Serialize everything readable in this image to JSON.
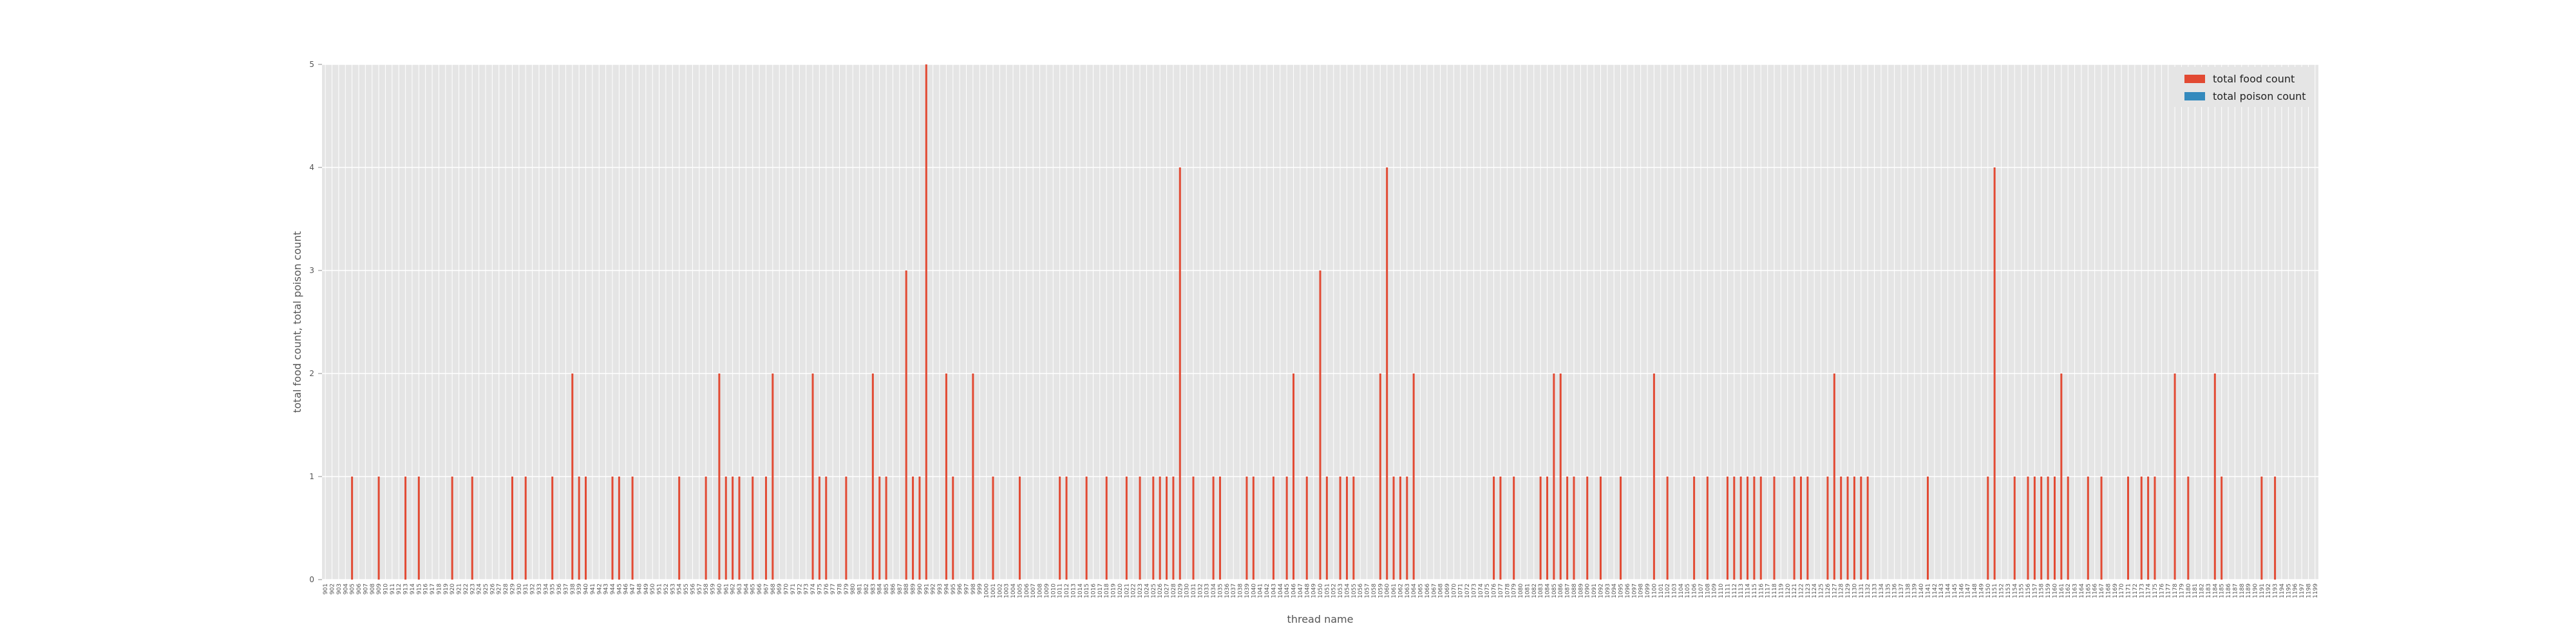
{
  "chart_data": {
    "type": "bar",
    "title": "",
    "xlabel": "thread name",
    "ylabel": "total food count, total poison count",
    "ylim": [
      0,
      5
    ],
    "yticks": [
      0,
      1,
      2,
      3,
      4,
      5
    ],
    "grid": true,
    "legend_position": "top-right",
    "x_range": [
      901,
      1199
    ],
    "series": [
      {
        "name": "total food count",
        "color": "#e24a33",
        "points": [
          [
            905,
            1
          ],
          [
            909,
            1
          ],
          [
            913,
            1
          ],
          [
            915,
            1
          ],
          [
            920,
            1
          ],
          [
            923,
            1
          ],
          [
            929,
            1
          ],
          [
            931,
            1
          ],
          [
            935,
            1
          ],
          [
            938,
            2
          ],
          [
            939,
            1
          ],
          [
            940,
            1
          ],
          [
            944,
            1
          ],
          [
            945,
            1
          ],
          [
            947,
            1
          ],
          [
            954,
            1
          ],
          [
            958,
            1
          ],
          [
            960,
            2
          ],
          [
            961,
            1
          ],
          [
            962,
            1
          ],
          [
            963,
            1
          ],
          [
            965,
            1
          ],
          [
            967,
            1
          ],
          [
            968,
            2
          ],
          [
            974,
            2
          ],
          [
            975,
            1
          ],
          [
            976,
            1
          ],
          [
            979,
            1
          ],
          [
            983,
            2
          ],
          [
            984,
            1
          ],
          [
            985,
            1
          ],
          [
            988,
            3
          ],
          [
            989,
            1
          ],
          [
            990,
            1
          ],
          [
            991,
            5
          ],
          [
            994,
            2
          ],
          [
            995,
            1
          ],
          [
            998,
            2
          ],
          [
            1001,
            1
          ],
          [
            1005,
            1
          ],
          [
            1011,
            1
          ],
          [
            1012,
            1
          ],
          [
            1015,
            1
          ],
          [
            1018,
            1
          ],
          [
            1021,
            1
          ],
          [
            1023,
            1
          ],
          [
            1025,
            1
          ],
          [
            1026,
            1
          ],
          [
            1027,
            1
          ],
          [
            1028,
            1
          ],
          [
            1029,
            4
          ],
          [
            1031,
            1
          ],
          [
            1034,
            1
          ],
          [
            1035,
            1
          ],
          [
            1039,
            1
          ],
          [
            1040,
            1
          ],
          [
            1043,
            1
          ],
          [
            1045,
            1
          ],
          [
            1046,
            2
          ],
          [
            1048,
            1
          ],
          [
            1050,
            3
          ],
          [
            1051,
            1
          ],
          [
            1053,
            1
          ],
          [
            1054,
            1
          ],
          [
            1055,
            1
          ],
          [
            1059,
            2
          ],
          [
            1060,
            4
          ],
          [
            1061,
            1
          ],
          [
            1062,
            1
          ],
          [
            1063,
            1
          ],
          [
            1064,
            2
          ],
          [
            1076,
            1
          ],
          [
            1077,
            1
          ],
          [
            1079,
            1
          ],
          [
            1083,
            1
          ],
          [
            1084,
            1
          ],
          [
            1085,
            2
          ],
          [
            1086,
            2
          ],
          [
            1087,
            1
          ],
          [
            1088,
            1
          ],
          [
            1090,
            1
          ],
          [
            1092,
            1
          ],
          [
            1095,
            1
          ],
          [
            1100,
            2
          ],
          [
            1102,
            1
          ],
          [
            1106,
            1
          ],
          [
            1108,
            1
          ],
          [
            1111,
            1
          ],
          [
            1112,
            1
          ],
          [
            1113,
            1
          ],
          [
            1114,
            1
          ],
          [
            1115,
            1
          ],
          [
            1116,
            1
          ],
          [
            1118,
            1
          ],
          [
            1121,
            1
          ],
          [
            1122,
            1
          ],
          [
            1123,
            1
          ],
          [
            1126,
            1
          ],
          [
            1127,
            2
          ],
          [
            1128,
            1
          ],
          [
            1129,
            1
          ],
          [
            1130,
            1
          ],
          [
            1131,
            1
          ],
          [
            1132,
            1
          ],
          [
            1141,
            1
          ],
          [
            1150,
            1
          ],
          [
            1151,
            4
          ],
          [
            1154,
            1
          ],
          [
            1156,
            1
          ],
          [
            1157,
            1
          ],
          [
            1158,
            1
          ],
          [
            1159,
            1
          ],
          [
            1160,
            1
          ],
          [
            1161,
            2
          ],
          [
            1162,
            1
          ],
          [
            1165,
            1
          ],
          [
            1167,
            1
          ],
          [
            1171,
            1
          ],
          [
            1173,
            1
          ],
          [
            1174,
            1
          ],
          [
            1175,
            1
          ],
          [
            1178,
            2
          ],
          [
            1180,
            1
          ],
          [
            1184,
            2
          ],
          [
            1185,
            1
          ],
          [
            1191,
            1
          ],
          [
            1193,
            1
          ]
        ]
      },
      {
        "name": "total poison count",
        "color": "#348abd",
        "points": []
      }
    ]
  }
}
